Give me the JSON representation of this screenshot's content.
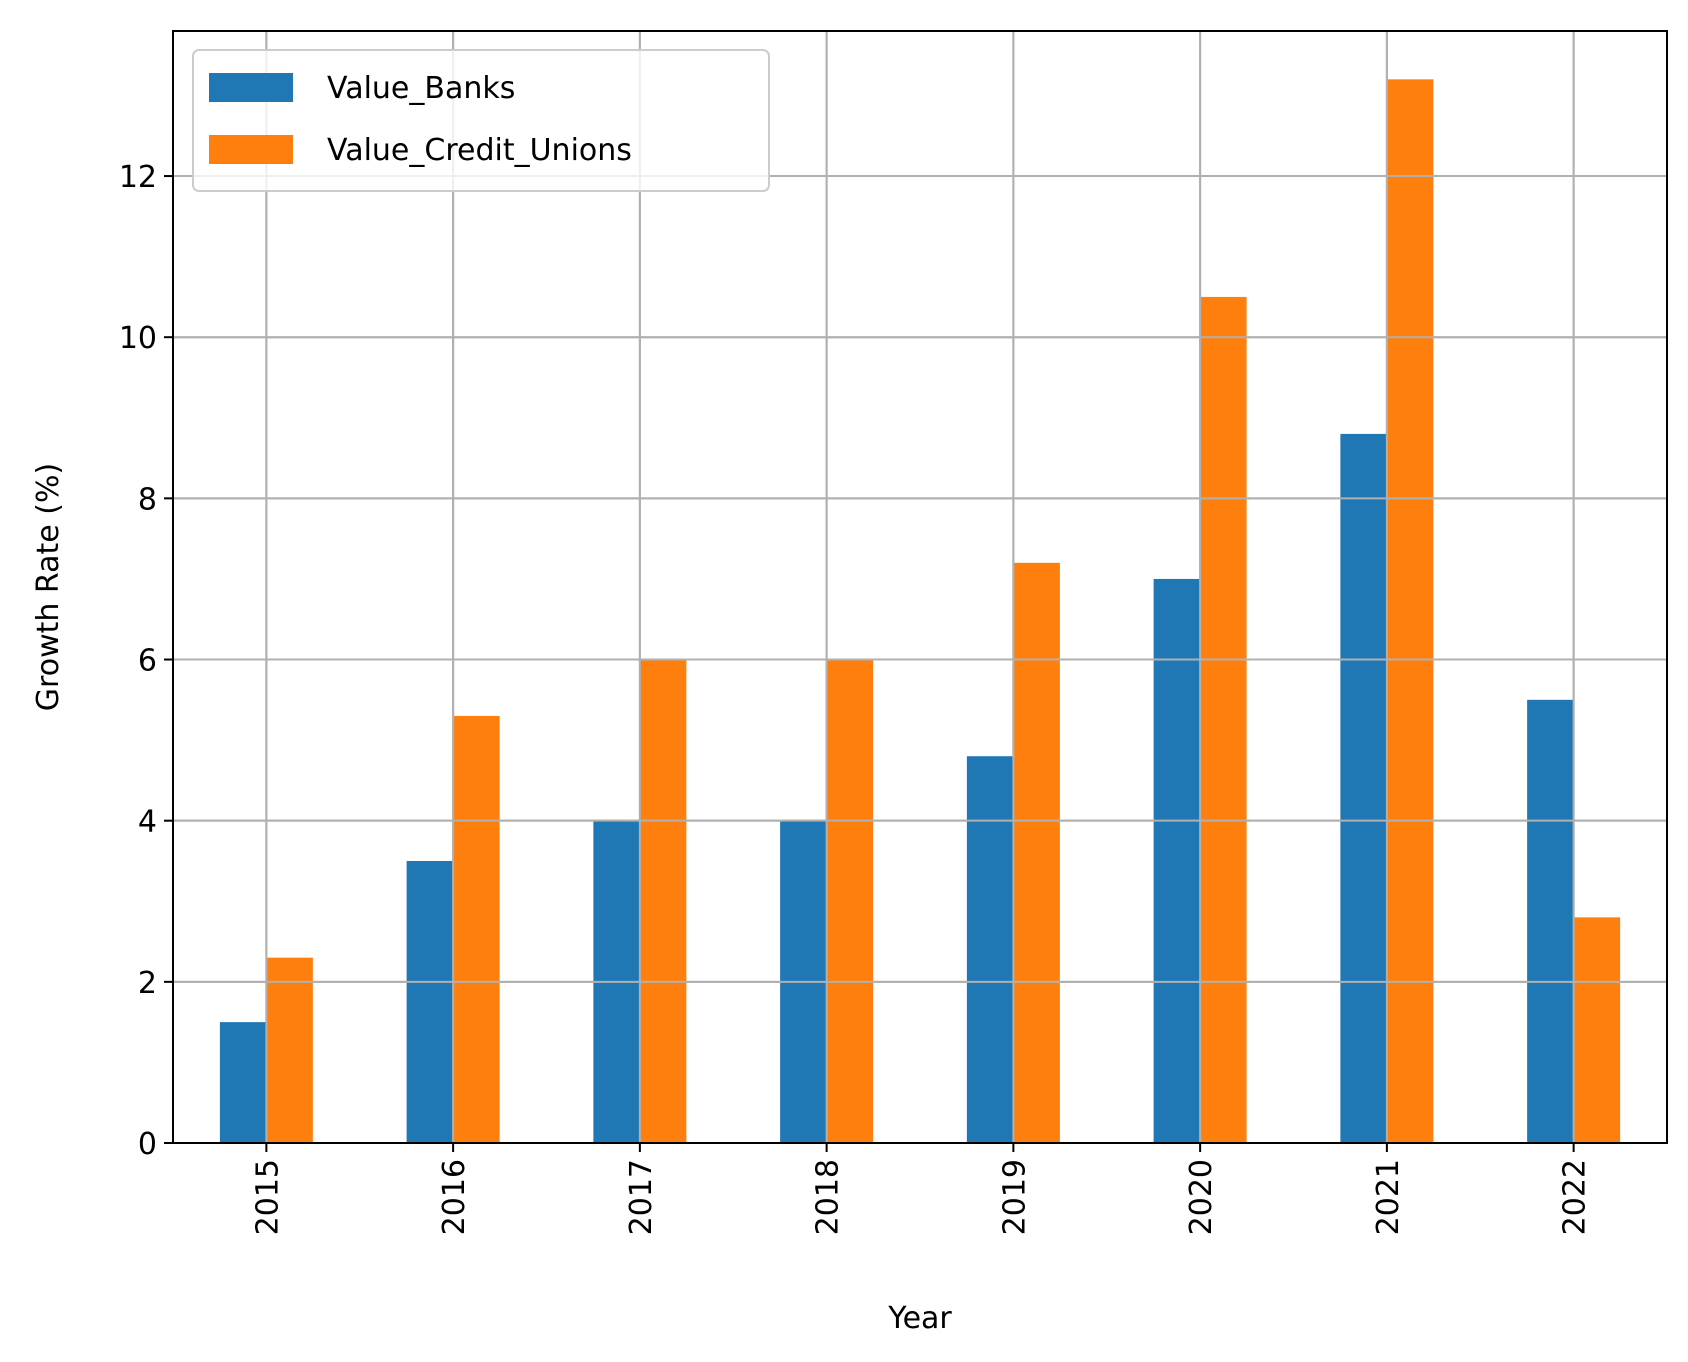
{
  "chart_data": {
    "type": "bar",
    "title": "",
    "xlabel": "Year",
    "ylabel": "Growth Rate (%)",
    "categories": [
      "2015",
      "2016",
      "2017",
      "2018",
      "2019",
      "2020",
      "2021",
      "2022"
    ],
    "series": [
      {
        "name": "Value_Banks",
        "color": "#1f77b4",
        "values": [
          1.5,
          3.5,
          4.0,
          4.0,
          4.8,
          7.0,
          8.8,
          5.5
        ]
      },
      {
        "name": "Value_Credit_Unions",
        "color": "#ff7f0e",
        "values": [
          2.3,
          5.3,
          6.0,
          6.0,
          7.2,
          10.5,
          13.2,
          2.8
        ]
      }
    ],
    "ylim": [
      0,
      13.8
    ],
    "yticks": [
      "0",
      "2",
      "4",
      "6",
      "8",
      "10",
      "12"
    ],
    "grid": true,
    "legend_position": "top-left",
    "x_tick_rotation": "vertical"
  }
}
